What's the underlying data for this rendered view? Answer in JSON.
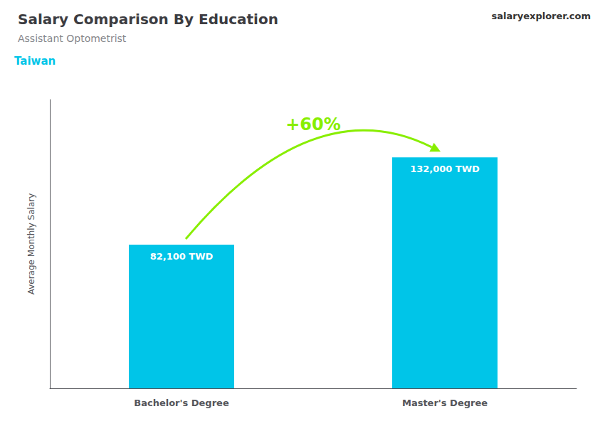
{
  "chart_data": {
    "type": "bar",
    "title": "Salary Comparison By Education",
    "subtitle": "Assistant Optometrist",
    "annotations": [
      {
        "text": "Taiwan",
        "color": "#00C5E8"
      },
      {
        "text": "salaryexplorer.com"
      },
      {
        "text": "+60%",
        "color": "#88EE00"
      }
    ],
    "ylabel": "Average Monthly Salary",
    "categories": [
      "Bachelor's Degree",
      "Master's Degree"
    ],
    "values": [
      82100,
      132000
    ],
    "value_labels": [
      "82,100 TWD",
      "132,000 TWD"
    ],
    "data_labels": true,
    "color": "#00C5E8",
    "ylim": [
      0,
      165000
    ],
    "tick_labels": "x",
    "grid": false
  }
}
